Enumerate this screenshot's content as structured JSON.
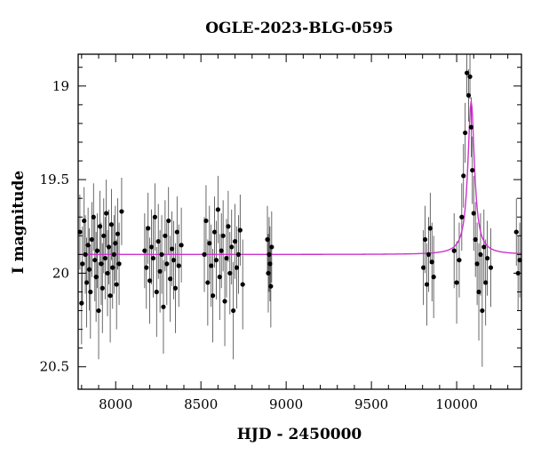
{
  "chart_data": {
    "type": "scatter",
    "title": "OGLE-2023-BLG-0595",
    "xlabel": "HJD - 2450000",
    "ylabel": "I magnitude",
    "xlim": [
      7780,
      10380
    ],
    "ylim": [
      20.62,
      18.83
    ],
    "y_inverted": true,
    "grid": false,
    "x_ticks": [
      {
        "value": 8000,
        "label": "8000"
      },
      {
        "value": 8500,
        "label": "8500"
      },
      {
        "value": 9000,
        "label": "9000"
      },
      {
        "value": 9500,
        "label": "9500"
      },
      {
        "value": 10000,
        "label": "10000"
      }
    ],
    "y_ticks": [
      {
        "value": 19,
        "label": "19"
      },
      {
        "value": 19.5,
        "label": "19.5"
      },
      {
        "value": 20,
        "label": "20"
      },
      {
        "value": 20.5,
        "label": "20.5"
      }
    ],
    "colors": {
      "data": "#000000",
      "errorbars": "#444444",
      "model": "#cc33cc"
    },
    "series": [
      {
        "kind": "data",
        "x": [
          7790,
          7800,
          7805,
          7815,
          7822,
          7830,
          7838,
          7845,
          7852,
          7860,
          7870,
          7878,
          7885,
          7892,
          7900,
          7908,
          7915,
          7922,
          7930,
          7938,
          7945,
          7952,
          7960,
          7968,
          7975,
          7982,
          7990,
          7998,
          8005,
          8012,
          8020,
          8035,
          8170,
          8180,
          8190,
          8200,
          8210,
          8220,
          8230,
          8240,
          8250,
          8260,
          8270,
          8280,
          8290,
          8300,
          8310,
          8320,
          8330,
          8340,
          8350,
          8360,
          8370,
          8385,
          8520,
          8530,
          8540,
          8550,
          8560,
          8570,
          8580,
          8590,
          8600,
          8610,
          8620,
          8630,
          8640,
          8650,
          8660,
          8670,
          8680,
          8690,
          8700,
          8710,
          8720,
          8730,
          8745,
          8890,
          8895,
          8900,
          8905,
          8910,
          8915,
          9805,
          9815,
          9825,
          9835,
          9845,
          9855,
          9865,
          9985,
          10000,
          10015,
          10030,
          10040,
          10050,
          10060,
          10070,
          10078,
          10085,
          10092,
          10100,
          10110,
          10120,
          10130,
          10140,
          10150,
          10160,
          10170,
          10180,
          10200,
          10350,
          10360,
          10370
        ],
        "y": [
          19.78,
          20.16,
          19.95,
          19.72,
          19.9,
          20.05,
          19.85,
          19.98,
          20.1,
          19.82,
          19.7,
          19.93,
          20.02,
          19.88,
          20.2,
          19.75,
          19.95,
          20.08,
          19.8,
          19.92,
          19.68,
          20.0,
          19.86,
          20.12,
          19.74,
          19.97,
          19.9,
          19.84,
          20.06,
          19.79,
          19.95,
          19.67,
          19.88,
          19.97,
          19.76,
          20.04,
          19.86,
          19.92,
          19.7,
          20.1,
          19.83,
          19.99,
          19.9,
          20.18,
          19.8,
          19.95,
          19.72,
          20.03,
          19.87,
          19.93,
          20.08,
          19.78,
          19.96,
          19.85,
          19.9,
          19.72,
          20.05,
          19.84,
          19.96,
          20.12,
          19.78,
          19.93,
          19.66,
          20.02,
          19.88,
          19.8,
          20.15,
          19.92,
          19.75,
          20.0,
          19.86,
          20.2,
          19.83,
          19.97,
          19.9,
          19.77,
          20.06,
          19.82,
          20.0,
          19.9,
          19.95,
          20.07,
          19.86,
          19.97,
          19.82,
          20.06,
          19.9,
          19.76,
          19.94,
          20.02,
          19.88,
          20.05,
          19.93,
          19.7,
          19.48,
          19.25,
          18.93,
          19.05,
          18.95,
          19.22,
          19.45,
          19.68,
          19.82,
          19.95,
          20.1,
          19.9,
          20.2,
          19.86,
          20.05,
          19.92,
          19.97,
          19.78,
          20.0,
          19.93
        ],
        "yerr": [
          0.2,
          0.22,
          0.2,
          0.18,
          0.21,
          0.24,
          0.2,
          0.22,
          0.25,
          0.2,
          0.18,
          0.22,
          0.24,
          0.2,
          0.26,
          0.19,
          0.22,
          0.24,
          0.2,
          0.22,
          0.18,
          0.23,
          0.2,
          0.25,
          0.19,
          0.22,
          0.21,
          0.2,
          0.24,
          0.19,
          0.22,
          0.18,
          0.2,
          0.22,
          0.19,
          0.23,
          0.2,
          0.21,
          0.18,
          0.24,
          0.2,
          0.22,
          0.21,
          0.25,
          0.19,
          0.22,
          0.18,
          0.23,
          0.2,
          0.21,
          0.24,
          0.19,
          0.22,
          0.2,
          0.2,
          0.19,
          0.23,
          0.2,
          0.22,
          0.25,
          0.19,
          0.21,
          0.18,
          0.23,
          0.2,
          0.19,
          0.24,
          0.21,
          0.19,
          0.22,
          0.2,
          0.26,
          0.2,
          0.22,
          0.21,
          0.19,
          0.24,
          0.18,
          0.21,
          0.2,
          0.2,
          0.22,
          0.19,
          0.2,
          0.18,
          0.22,
          0.2,
          0.19,
          0.21,
          0.22,
          0.2,
          0.22,
          0.2,
          0.18,
          0.17,
          0.16,
          0.12,
          0.14,
          0.12,
          0.16,
          0.18,
          0.2,
          0.2,
          0.22,
          0.26,
          0.22,
          0.3,
          0.2,
          0.23,
          0.2,
          0.21,
          0.18,
          0.2,
          0.2
        ]
      },
      {
        "kind": "model",
        "baseline": 19.9,
        "peak_time": 10085,
        "peak_mag": 19.08,
        "timescale": 40,
        "tstart": 7780,
        "tend": 10380
      }
    ]
  }
}
